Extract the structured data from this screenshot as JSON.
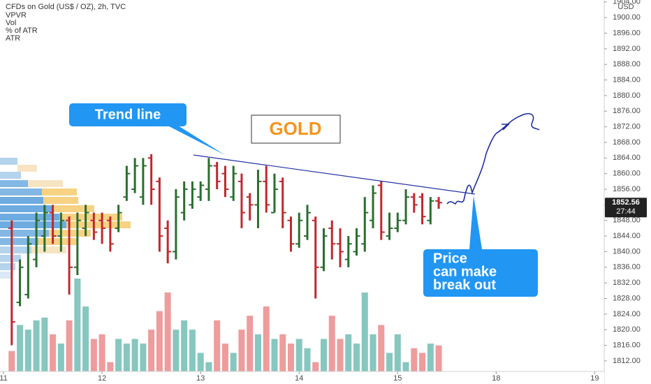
{
  "chart_data": {
    "type": "ohlc",
    "title": "CFDs on Gold (US$ / OZ), 2h, TVC",
    "indicators": [
      "VPVR",
      "Vol",
      "% of ATR",
      "ATR"
    ],
    "currency": "USD",
    "up_color": "#2a6e2f",
    "down_color": "#c0282d",
    "volume_up_color": "#86c7c0",
    "volume_down_color": "#ee9c9c",
    "open": [
      1846,
      1827,
      1829,
      1838,
      1844,
      1850,
      1844,
      1848,
      1836,
      1846,
      1848,
      1848,
      1848,
      1846,
      1854,
      1856,
      1854,
      1864,
      1858,
      1846,
      1840,
      1850,
      1852,
      1854,
      1856,
      1862,
      1860,
      1854,
      1858,
      1854,
      1852,
      1858,
      1850,
      1858,
      1848,
      1842,
      1844,
      1848,
      1836,
      1846,
      1842,
      1838,
      1840,
      1842,
      1848,
      1857,
      1844,
      1846,
      1848,
      1854,
      1854,
      1848,
      1853
    ],
    "high": [
      1848,
      1838,
      1844,
      1850,
      1852,
      1852,
      1850,
      1849,
      1850,
      1852,
      1850,
      1850,
      1849,
      1852,
      1862,
      1864,
      1864,
      1865,
      1859,
      1848,
      1856,
      1858,
      1858,
      1858,
      1864,
      1863,
      1862,
      1862,
      1860,
      1855,
      1861,
      1862,
      1860,
      1859,
      1849,
      1850,
      1852,
      1849,
      1846,
      1848,
      1846,
      1844,
      1846,
      1854,
      1857,
      1858,
      1850,
      1850,
      1856,
      1855,
      1855,
      1854,
      1854
    ],
    "low": [
      1816,
      1826,
      1828,
      1836,
      1840,
      1842,
      1840,
      1829,
      1834,
      1844,
      1843,
      1842,
      1840,
      1845,
      1853,
      1855,
      1852,
      1852,
      1840,
      1837,
      1838,
      1848,
      1851,
      1853,
      1853,
      1856,
      1854,
      1853,
      1846,
      1848,
      1846,
      1850,
      1850,
      1846,
      1840,
      1841,
      1843,
      1828,
      1835,
      1838,
      1836,
      1836,
      1839,
      1840,
      1846,
      1843,
      1843,
      1845,
      1847,
      1850,
      1847,
      1847,
      1851
    ],
    "close": [
      1822,
      1836,
      1842,
      1848,
      1850,
      1844,
      1848,
      1836,
      1848,
      1850,
      1845,
      1846,
      1842,
      1850,
      1860,
      1862,
      1862,
      1856,
      1844,
      1840,
      1854,
      1856,
      1856,
      1857,
      1862,
      1858,
      1856,
      1860,
      1850,
      1852,
      1858,
      1852,
      1856,
      1850,
      1842,
      1848,
      1850,
      1836,
      1844,
      1842,
      1840,
      1842,
      1844,
      1850,
      1855,
      1845,
      1846,
      1848,
      1854,
      1852,
      1849,
      1853,
      1852.56
    ],
    "volume": [
      22,
      50,
      45,
      55,
      58,
      40,
      30,
      55,
      100,
      70,
      35,
      40,
      10,
      35,
      30,
      35,
      30,
      45,
      65,
      85,
      45,
      55,
      45,
      20,
      10,
      55,
      30,
      20,
      45,
      60,
      40,
      70,
      35,
      40,
      30,
      35,
      25,
      10,
      35,
      60,
      35,
      40,
      30,
      85,
      40,
      50,
      20,
      40,
      10,
      25,
      20,
      30,
      28
    ],
    "vlim": [
      0,
      400
    ],
    "ylim": [
      1809.3,
      1904.5
    ],
    "yticks": [
      {
        "value": 1812,
        "label": "1812.00"
      },
      {
        "value": 1816,
        "label": "1816.00"
      },
      {
        "value": 1820,
        "label": "1820.00"
      },
      {
        "value": 1824,
        "label": "1824.00"
      },
      {
        "value": 1828,
        "label": "1828.00"
      },
      {
        "value": 1832,
        "label": "1832.00"
      },
      {
        "value": 1836,
        "label": "1836.00"
      },
      {
        "value": 1840,
        "label": "1840.00"
      },
      {
        "value": 1844,
        "label": "1844.00"
      },
      {
        "value": 1848,
        "label": "1848.00"
      },
      {
        "value": 1852,
        "label": "1852.00"
      },
      {
        "value": 1856,
        "label": "1856.00"
      },
      {
        "value": 1860,
        "label": "1860.00"
      },
      {
        "value": 1864,
        "label": "1864.00"
      },
      {
        "value": 1868,
        "label": "1868.00"
      },
      {
        "value": 1872,
        "label": "1872.00"
      },
      {
        "value": 1876,
        "label": "1876.00"
      },
      {
        "value": 1880,
        "label": "1880.00"
      },
      {
        "value": 1884,
        "label": "1884.00"
      },
      {
        "value": 1888,
        "label": "1888.00"
      },
      {
        "value": 1892,
        "label": "1892.00"
      },
      {
        "value": 1896,
        "label": "1896.00"
      },
      {
        "value": 1900,
        "label": "1900.00"
      },
      {
        "value": 1904,
        "label": "1904.00"
      }
    ],
    "xlim": [
      -0.43,
      72.9
    ],
    "xticks": [
      {
        "value": 0,
        "label": "11"
      },
      {
        "value": 12,
        "label": "12"
      },
      {
        "value": 24,
        "label": "13"
      },
      {
        "value": 36,
        "label": "14"
      },
      {
        "value": 48,
        "label": "15"
      },
      {
        "value": 60,
        "label": "18"
      },
      {
        "value": 72,
        "label": "19"
      }
    ],
    "last_price": 1852.56,
    "countdown": "27:44",
    "annotations": {
      "trend": "Trend line",
      "symbol": "GOLD",
      "breakout": [
        "Price",
        "can make",
        "break out"
      ]
    }
  }
}
